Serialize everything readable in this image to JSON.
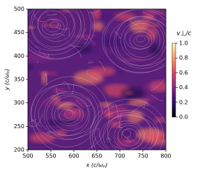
{
  "chart_data": {
    "type": "heatmap",
    "xlabel": "x (c/ωₚ)",
    "ylabel": "y (c/ωₚ)",
    "xlim": [
      500,
      800
    ],
    "xticks": [
      500,
      550,
      600,
      650,
      700,
      750,
      800
    ],
    "ylim": [
      200,
      500
    ],
    "yticks": [
      200,
      250,
      300,
      350,
      400,
      450,
      500
    ],
    "colorbar": {
      "label": "v⊥/c",
      "colormap": "magma",
      "lim": [
        0,
        1
      ],
      "ticks": [
        {
          "value": 0,
          "label": "0.0"
        },
        {
          "value": 0.2,
          "label": "0.2"
        },
        {
          "value": 0.4,
          "label": "0.4"
        },
        {
          "value": 0.6,
          "label": "0.6"
        },
        {
          "value": 0.8,
          "label": "0.8"
        },
        {
          "value": 1,
          "label": "1.0"
        }
      ]
    }
  }
}
